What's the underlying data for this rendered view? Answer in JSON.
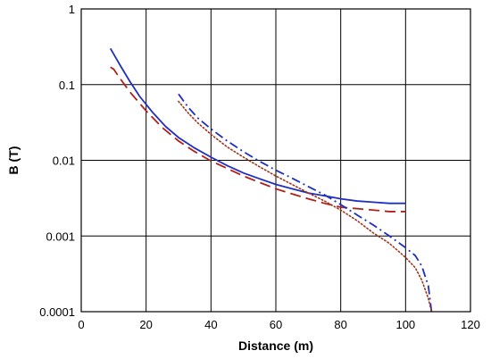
{
  "chart_data": {
    "type": "line",
    "title": "",
    "xlabel": "Distance (m)",
    "ylabel": "B (T)",
    "xlim": [
      0,
      120
    ],
    "ylim": [
      0.0001,
      1
    ],
    "yscale": "log",
    "grid": true,
    "x_ticks": [
      "0",
      "20",
      "40",
      "60",
      "80",
      "100",
      "120"
    ],
    "y_ticks": [
      "0.0001",
      "0.001",
      "0.01",
      "0.1",
      "1"
    ],
    "colors": {
      "blue_solid": "#1f2fbf",
      "red_dashed": "#b0201a",
      "blue_dashdot": "#1f2fbf",
      "brown_dotted": "#a0341a"
    },
    "series": [
      {
        "style": "solid",
        "color": "#1f2fbf",
        "points": [
          [
            9,
            0.3
          ],
          [
            12,
            0.18
          ],
          [
            15,
            0.11
          ],
          [
            18,
            0.07
          ],
          [
            22,
            0.043
          ],
          [
            26,
            0.028
          ],
          [
            30,
            0.02
          ],
          [
            35,
            0.0145
          ],
          [
            40,
            0.011
          ],
          [
            45,
            0.0085
          ],
          [
            50,
            0.0068
          ],
          [
            55,
            0.0057
          ],
          [
            60,
            0.0048
          ],
          [
            65,
            0.0042
          ],
          [
            70,
            0.0037
          ],
          [
            75,
            0.0034
          ],
          [
            80,
            0.0031
          ],
          [
            85,
            0.0029
          ],
          [
            90,
            0.0028
          ],
          [
            95,
            0.0027
          ],
          [
            100,
            0.0027
          ]
        ]
      },
      {
        "style": "dashed",
        "color": "#b0201a",
        "points": [
          [
            9,
            0.17
          ],
          [
            10,
            0.16
          ],
          [
            12,
            0.12
          ],
          [
            15,
            0.08
          ],
          [
            20,
            0.045
          ],
          [
            25,
            0.027
          ],
          [
            30,
            0.018
          ],
          [
            35,
            0.013
          ],
          [
            40,
            0.0098
          ],
          [
            45,
            0.0078
          ],
          [
            50,
            0.0062
          ],
          [
            55,
            0.0051
          ],
          [
            60,
            0.0042
          ],
          [
            65,
            0.0036
          ],
          [
            70,
            0.0031
          ],
          [
            75,
            0.0027
          ],
          [
            80,
            0.0024
          ],
          [
            85,
            0.0023
          ],
          [
            90,
            0.0022
          ],
          [
            95,
            0.0021
          ],
          [
            100,
            0.0021
          ]
        ]
      },
      {
        "style": "dashdot",
        "color": "#1f2fbf",
        "points": [
          [
            30,
            0.075
          ],
          [
            33,
            0.05
          ],
          [
            36,
            0.036
          ],
          [
            40,
            0.026
          ],
          [
            45,
            0.018
          ],
          [
            50,
            0.013
          ],
          [
            55,
            0.0097
          ],
          [
            60,
            0.0074
          ],
          [
            65,
            0.0058
          ],
          [
            70,
            0.0045
          ],
          [
            75,
            0.0035
          ],
          [
            80,
            0.0026
          ],
          [
            85,
            0.0019
          ],
          [
            90,
            0.0014
          ],
          [
            95,
            0.001
          ],
          [
            100,
            0.0007
          ],
          [
            103,
            0.00055
          ],
          [
            105,
            0.0004
          ],
          [
            107,
            0.00022
          ],
          [
            108,
            0.0001
          ]
        ]
      },
      {
        "style": "dotted",
        "color": "#a0341a",
        "points": [
          [
            30,
            0.06
          ],
          [
            33,
            0.042
          ],
          [
            36,
            0.031
          ],
          [
            40,
            0.022
          ],
          [
            45,
            0.015
          ],
          [
            50,
            0.011
          ],
          [
            55,
            0.0082
          ],
          [
            60,
            0.0062
          ],
          [
            65,
            0.0048
          ],
          [
            70,
            0.0037
          ],
          [
            75,
            0.0029
          ],
          [
            80,
            0.0022
          ],
          [
            85,
            0.0016
          ],
          [
            90,
            0.0011
          ],
          [
            95,
            0.0008
          ],
          [
            100,
            0.00052
          ],
          [
            103,
            0.00038
          ],
          [
            105,
            0.00026
          ],
          [
            107,
            0.00015
          ],
          [
            108,
            0.0001
          ]
        ]
      }
    ]
  }
}
